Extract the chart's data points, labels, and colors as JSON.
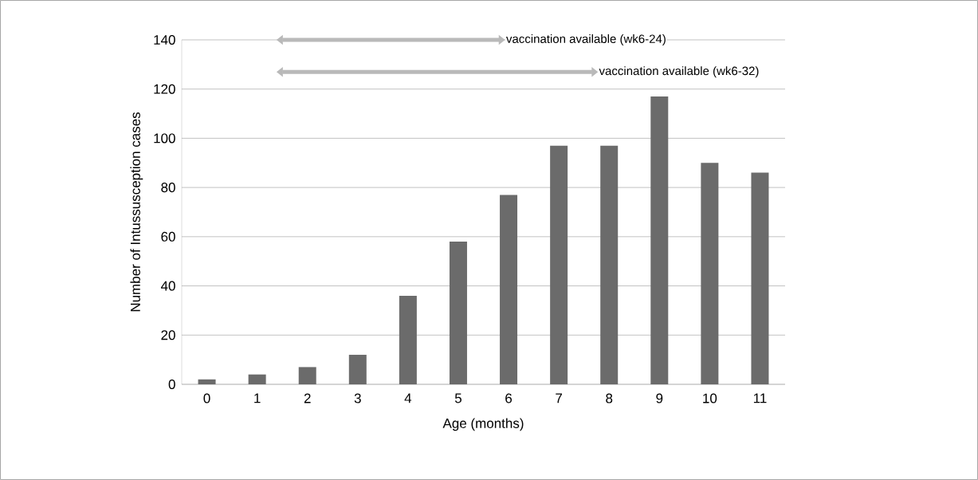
{
  "chart_data": {
    "type": "bar",
    "xlabel": "Age (months)",
    "ylabel": "Number of Intussusception cases",
    "categories": [
      "0",
      "1",
      "2",
      "3",
      "4",
      "5",
      "6",
      "7",
      "8",
      "9",
      "10",
      "11"
    ],
    "values": [
      2,
      4,
      7,
      12,
      36,
      58,
      77,
      97,
      97,
      117,
      90,
      86
    ],
    "color": "#6b6b6b",
    "ylim": [
      0,
      140
    ],
    "yticks": [
      0,
      20,
      40,
      60,
      80,
      100,
      120,
      140
    ],
    "grid": "y",
    "annotations": [
      "vaccination available (wk6-24)",
      "vaccination available (wk6-32)"
    ]
  }
}
